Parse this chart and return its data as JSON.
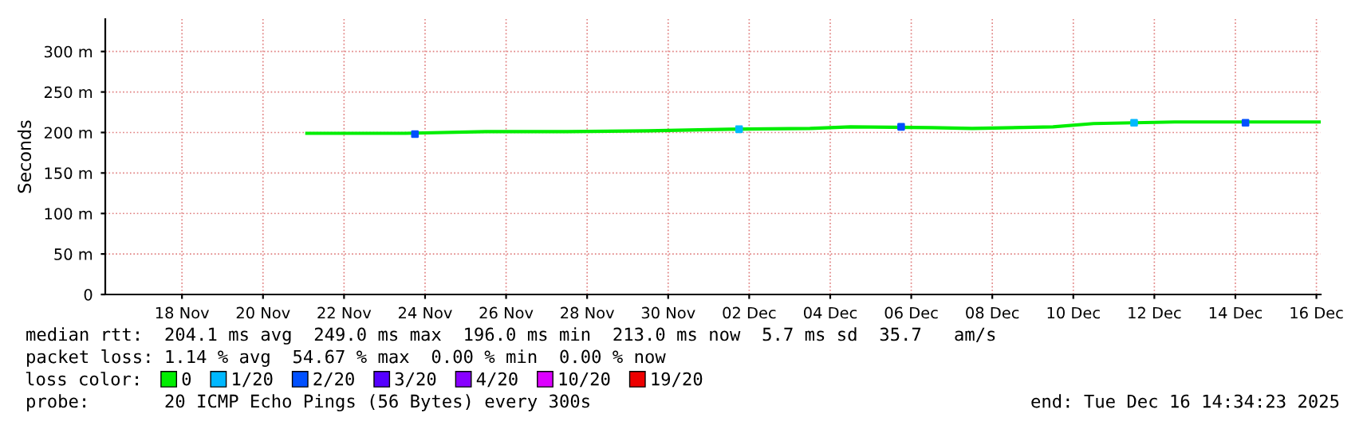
{
  "chart_data": {
    "type": "line",
    "ylabel": "Seconds",
    "legend_title": "loss color:",
    "legend": "bottom left",
    "grid": true,
    "xlim": [
      "2025-11-16T14:34",
      "2025-12-16T14:34"
    ],
    "xticks": [
      {
        "value": "2025-11-18T12:00",
        "label": "18 Nov"
      },
      {
        "value": "2025-11-20T12:00",
        "label": "20 Nov"
      },
      {
        "value": "2025-11-22T12:00",
        "label": "22 Nov"
      },
      {
        "value": "2025-11-24T12:00",
        "label": "24 Nov"
      },
      {
        "value": "2025-11-26T12:00",
        "label": "26 Nov"
      },
      {
        "value": "2025-11-28T12:00",
        "label": "28 Nov"
      },
      {
        "value": "2025-11-30T12:00",
        "label": "30 Nov"
      },
      {
        "value": "2025-12-02T12:00",
        "label": "02 Dec"
      },
      {
        "value": "2025-12-04T12:00",
        "label": "04 Dec"
      },
      {
        "value": "2025-12-06T12:00",
        "label": "06 Dec"
      },
      {
        "value": "2025-12-08T12:00",
        "label": "08 Dec"
      },
      {
        "value": "2025-12-10T12:00",
        "label": "10 Dec"
      },
      {
        "value": "2025-12-12T12:00",
        "label": "12 Dec"
      },
      {
        "value": "2025-12-14T12:00",
        "label": "14 Dec"
      },
      {
        "value": "2025-12-16T12:00",
        "label": "16 Dec"
      }
    ],
    "ylim": [
      0,
      340
    ],
    "yticks": [
      0,
      {
        "value": 50,
        "label": "50 m"
      },
      {
        "value": 100,
        "label": "100 m"
      },
      {
        "value": 150,
        "label": "150 m"
      },
      {
        "value": 200,
        "label": "200 m"
      },
      {
        "value": 250,
        "label": "250 m"
      },
      {
        "value": 300,
        "label": "300 m"
      }
    ],
    "series": [
      {
        "name": "0",
        "color": "#00ee00",
        "x": [
          "2025-11-21T14:00",
          "2025-11-24T00:00",
          "2025-11-26T00:00",
          "2025-11-28T00:00",
          "2025-11-30T00:00",
          "2025-12-02T00:00",
          "2025-12-04T00:00",
          "2025-12-05T00:00",
          "2025-12-07T00:00",
          "2025-12-08T00:00",
          "2025-12-10T00:00",
          "2025-12-11T00:00",
          "2025-12-13T00:00",
          "2025-12-16T14:00"
        ],
        "values": [
          199,
          199,
          201,
          201,
          202,
          204,
          205,
          207,
          206,
          205,
          207,
          211,
          213,
          213
        ]
      },
      {
        "name": "1/20",
        "color": "#00b8ff",
        "type": "scatter",
        "marker": "square",
        "x": [
          "2025-12-02T06:00",
          "2025-12-12T00:00"
        ],
        "values": [
          204,
          212
        ]
      },
      {
        "name": "2/20",
        "color": "#0050ff",
        "type": "scatter",
        "marker": "square",
        "x": [
          "2025-11-24T06:00",
          "2025-12-06T06:00",
          "2025-12-14T18:00"
        ],
        "values": [
          198,
          207,
          212
        ]
      },
      {
        "name": "3/20",
        "color": "#5500ff",
        "type": "scatter"
      },
      {
        "name": "4/20",
        "color": "#8800ff",
        "type": "scatter"
      },
      {
        "name": "10/20",
        "color": "#dd00ff",
        "type": "scatter"
      },
      {
        "name": "19/20",
        "color": "#ee0000",
        "type": "scatter"
      }
    ],
    "annotations": [
      "median rtt:  204.1 ms avg  249.0 ms max  196.0 ms min  213.0 ms now  5.7 ms sd  35.7   am/s",
      "packet loss: 1.14 % avg  54.67 % max  0.00 % min  0.00 % now",
      "probe:       20 ICMP Echo Pings (56 Bytes) every 300s",
      "end: Tue Dec 16 14:34:23 2025"
    ]
  }
}
